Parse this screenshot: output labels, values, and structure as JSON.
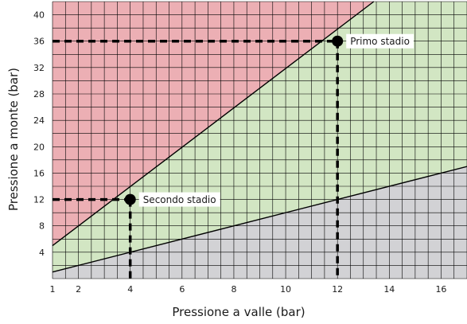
{
  "chart_data": {
    "type": "area",
    "title": "",
    "xlabel": "Pressione a valle (bar)",
    "ylabel": "Pressione a monte (bar)",
    "xlim": [
      1,
      17
    ],
    "ylim": [
      0,
      42
    ],
    "xticks": [
      1,
      2,
      4,
      6,
      8,
      10,
      12,
      14,
      16
    ],
    "yticks": [
      4,
      8,
      12,
      16,
      20,
      24,
      28,
      32,
      36,
      40
    ],
    "grid": true,
    "regions": [
      {
        "label": "",
        "color": "#ecafb4",
        "description": "above upper line"
      },
      {
        "label": "",
        "color": "#d2e6c3",
        "description": "between lines"
      },
      {
        "label": "",
        "color": "#d2d2d5",
        "description": "below lower line"
      }
    ],
    "lines": [
      {
        "x": [
          1,
          13.4
        ],
        "y": [
          5,
          42
        ]
      },
      {
        "x": [
          1,
          17
        ],
        "y": [
          1,
          17
        ]
      }
    ],
    "points": [
      {
        "x": 12,
        "y": 36,
        "label": "Primo stadio"
      },
      {
        "x": 4,
        "y": 12,
        "label": "Secondo stadio"
      }
    ],
    "colors": {
      "grid": "#000000",
      "line": "#000000",
      "label_box": "#ffffff"
    }
  }
}
